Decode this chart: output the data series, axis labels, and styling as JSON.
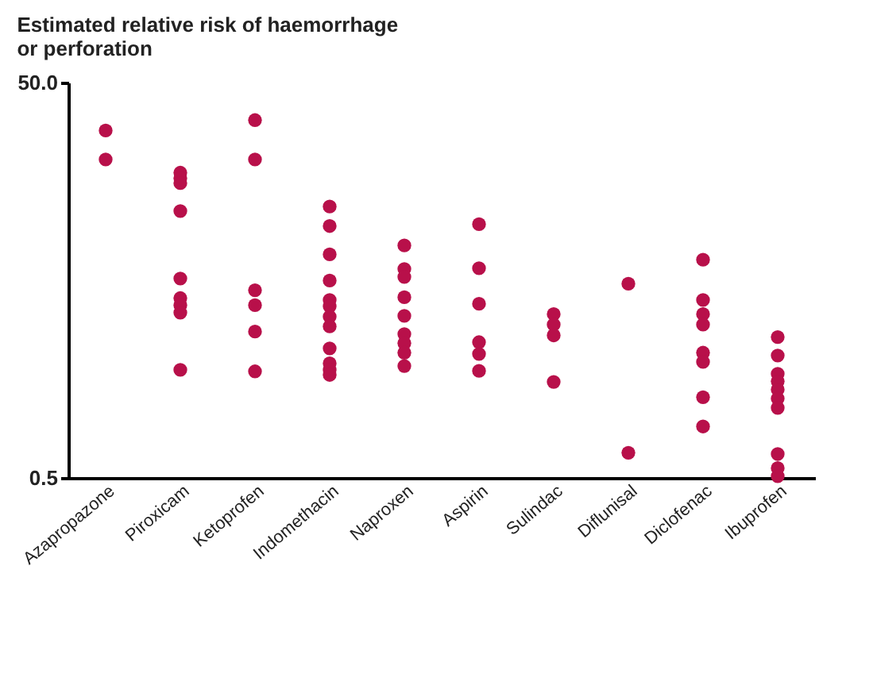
{
  "chart_data": {
    "type": "scatter",
    "title": [
      "Estimated relative risk of haemorrhage",
      "or perforation"
    ],
    "categories": [
      "Azapropazone",
      "Piroxicam",
      "Ketoprofen",
      "Indomethacin",
      "Naproxen",
      "Aspirin",
      "Sulindac",
      "Diflunisal",
      "Diclofenac",
      "Ibuprofen"
    ],
    "series": [
      {
        "color": "#b8104a",
        "x": [
          "Azapropazone",
          "Azapropazone",
          "Piroxicam",
          "Piroxicam",
          "Piroxicam",
          "Piroxicam",
          "Piroxicam",
          "Piroxicam",
          "Piroxicam",
          "Piroxicam",
          "Piroxicam",
          "Ketoprofen",
          "Ketoprofen",
          "Ketoprofen",
          "Ketoprofen",
          "Ketoprofen",
          "Ketoprofen",
          "Indomethacin",
          "Indomethacin",
          "Indomethacin",
          "Indomethacin",
          "Indomethacin",
          "Indomethacin",
          "Indomethacin",
          "Indomethacin",
          "Indomethacin",
          "Indomethacin",
          "Indomethacin",
          "Indomethacin",
          "Naproxen",
          "Naproxen",
          "Naproxen",
          "Naproxen",
          "Naproxen",
          "Naproxen",
          "Naproxen",
          "Naproxen",
          "Naproxen",
          "Aspirin",
          "Aspirin",
          "Aspirin",
          "Aspirin",
          "Aspirin",
          "Aspirin",
          "Sulindac",
          "Sulindac",
          "Sulindac",
          "Sulindac",
          "Diflunisal",
          "Diflunisal",
          "Diclofenac",
          "Diclofenac",
          "Diclofenac",
          "Diclofenac",
          "Diclofenac",
          "Diclofenac",
          "Diclofenac",
          "Diclofenac",
          "Ibuprofen",
          "Ibuprofen",
          "Ibuprofen",
          "Ibuprofen",
          "Ibuprofen",
          "Ibuprofen",
          "Ibuprofen",
          "Ibuprofen",
          "Ibuprofen",
          "Ibuprofen"
        ],
        "values": [
          28.6,
          20.4,
          17.5,
          16.4,
          15.5,
          11.2,
          5.1,
          4.06,
          3.74,
          3.43,
          1.76,
          32.3,
          20.4,
          4.45,
          3.74,
          2.75,
          1.73,
          11.8,
          9.4,
          6.76,
          4.98,
          3.97,
          3.69,
          3.27,
          2.92,
          2.26,
          1.9,
          1.76,
          1.66,
          7.5,
          5.7,
          5.2,
          4.1,
          3.3,
          2.67,
          2.4,
          2.15,
          1.84,
          9.6,
          5.75,
          3.8,
          2.43,
          2.12,
          1.74,
          3.37,
          2.98,
          2.63,
          1.53,
          4.8,
          0.67,
          6.35,
          3.97,
          3.37,
          2.98,
          2.15,
          1.93,
          1.28,
          0.91,
          2.58,
          2.08,
          1.68,
          1.54,
          1.4,
          1.26,
          1.13,
          0.66,
          0.56,
          0.51
        ]
      }
    ],
    "log": true,
    "ylim": [
      0.5,
      50
    ],
    "yticks": [
      0.5,
      {
        "value": 50,
        "label": "50.0"
      }
    ],
    "grid": false,
    "legend": false,
    "marker": "circle"
  }
}
